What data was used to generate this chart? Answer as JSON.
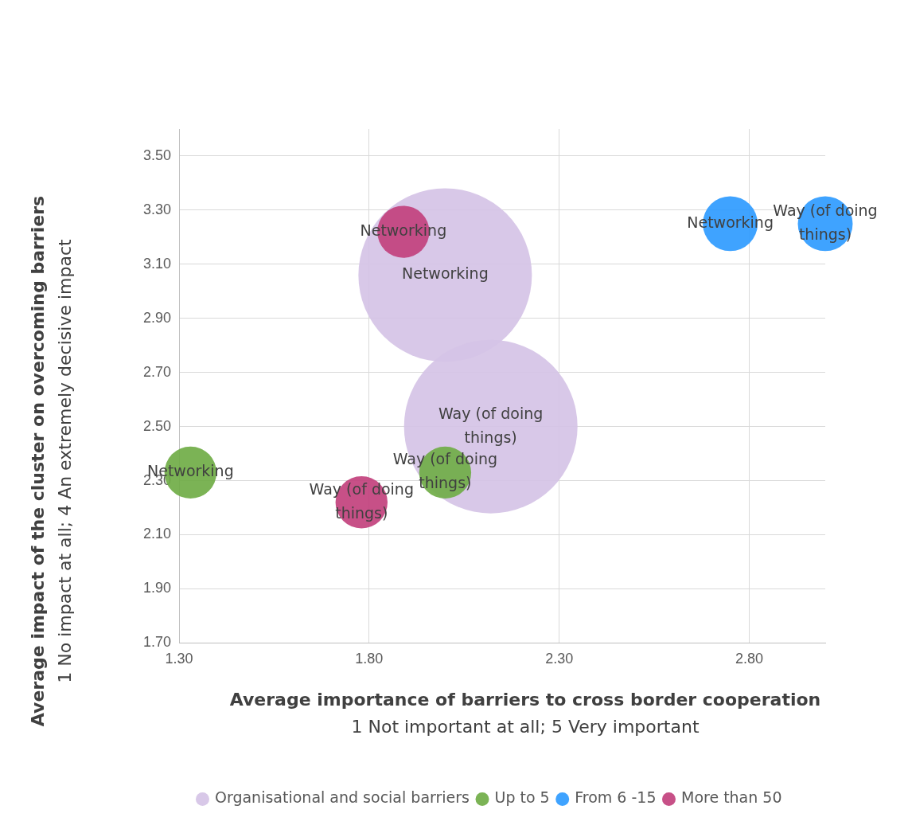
{
  "chart_data": {
    "type": "bubble",
    "xlabel": "Average importance of barriers to cross border cooperation\n1 Not important at all; 5 Very important",
    "ylabel": "Average impact of the cluster on overcoming barriers\n1 No impact at all; 4 An extremely decisive impact",
    "series": [
      {
        "name": "Organisational and social barriers",
        "color": "#d5c3e6",
        "x": [
          2.0,
          2.12
        ],
        "values": [
          3.06,
          2.5
        ],
        "sizes": [
          1,
          1
        ]
      },
      {
        "name": "Up to 5",
        "color": "#70ad47",
        "x": [
          1.33,
          2.0
        ],
        "values": [
          2.33,
          2.33
        ],
        "sizes": [
          0.09,
          0.09
        ]
      },
      {
        "name": "From 6 -15",
        "color": "#2f9bff",
        "x": [
          2.75,
          3.0
        ],
        "values": [
          3.25,
          3.25
        ],
        "sizes": [
          0.1,
          0.1
        ]
      },
      {
        "name": "More than 50",
        "color": "#c2417d",
        "x": [
          1.89,
          1.78
        ],
        "values": [
          3.22,
          2.22
        ],
        "sizes": [
          0.09,
          0.09
        ]
      }
    ],
    "annotations": [
      {
        "text": "Networking",
        "x": 2.0,
        "y": 3.06
      },
      {
        "text": "Way (of doing things)",
        "x": 2.12,
        "y": 2.5
      },
      {
        "text": "Networking",
        "x": 1.33,
        "y": 2.33
      },
      {
        "text": "Way (of doing things)",
        "x": 2.0,
        "y": 2.33
      },
      {
        "text": "Networking",
        "x": 2.75,
        "y": 3.25
      },
      {
        "text": "Way (of doing things)",
        "x": 3.0,
        "y": 3.25
      },
      {
        "text": "Networking",
        "x": 1.89,
        "y": 3.22
      },
      {
        "text": "Way (of doing things)",
        "x": 1.78,
        "y": 2.22
      }
    ],
    "xlim": [
      1.3,
      3.0
    ],
    "xticks": [
      {
        "value": 1.3,
        "label": "1.30"
      },
      {
        "value": 1.8,
        "label": "1.80"
      },
      {
        "value": 2.3,
        "label": "2.30"
      },
      {
        "value": 2.8,
        "label": "2.80"
      }
    ],
    "ylim": [
      1.7,
      3.6
    ],
    "yticks": [
      {
        "value": 1.7,
        "label": "1.70"
      },
      {
        "value": 1.9,
        "label": "1.90"
      },
      {
        "value": 2.1,
        "label": "2.10"
      },
      {
        "value": 2.3,
        "label": "2.30"
      },
      {
        "value": 2.5,
        "label": "2.50"
      },
      {
        "value": 2.7,
        "label": "2.70"
      },
      {
        "value": 2.9,
        "label": "2.90"
      },
      {
        "value": 3.1,
        "label": "3.10"
      },
      {
        "value": 3.3,
        "label": "3.30"
      },
      {
        "value": 3.5,
        "label": "3.50"
      }
    ],
    "grid": true,
    "legend": "bottom"
  }
}
